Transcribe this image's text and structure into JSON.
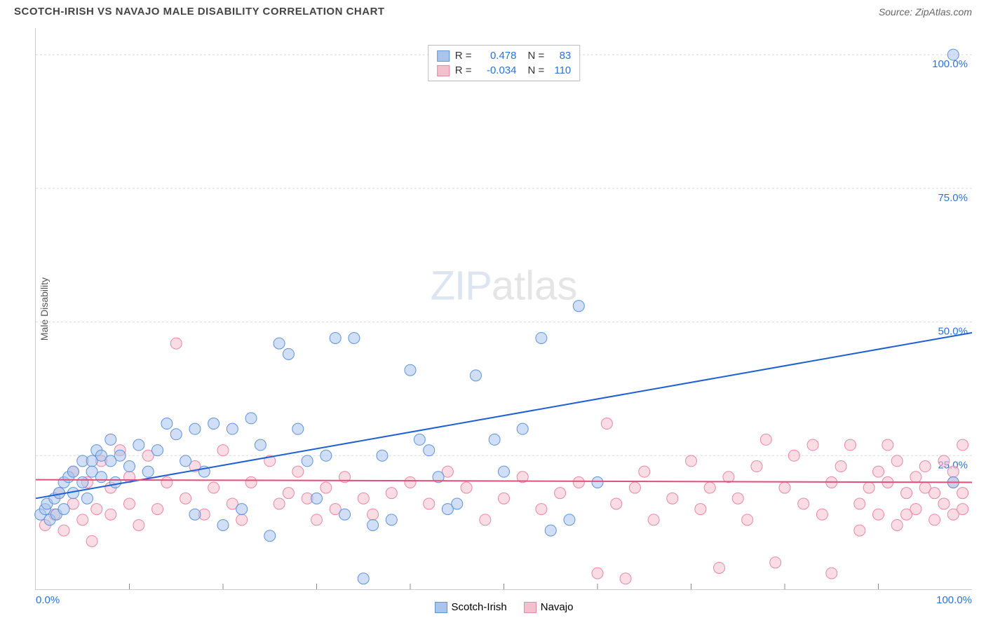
{
  "header": {
    "title": "SCOTCH-IRISH VS NAVAJO MALE DISABILITY CORRELATION CHART",
    "source": "Source: ZipAtlas.com"
  },
  "chart": {
    "type": "scatter",
    "ylabel": "Male Disability",
    "xlim": [
      0,
      100
    ],
    "ylim": [
      0,
      105
    ],
    "xtick_major": [
      0,
      100
    ],
    "xtick_minor_step": 10,
    "ytick_labels": [
      "25.0%",
      "50.0%",
      "75.0%",
      "100.0%"
    ],
    "ytick_values": [
      25,
      50,
      75,
      100
    ],
    "x_min_label": "0.0%",
    "x_max_label": "100.0%",
    "grid_color": "#d8d8d8",
    "grid_dash": "3,3",
    "tick_label_color": "#2b73d6",
    "background_color": "#ffffff",
    "marker_radius": 8,
    "marker_opacity": 0.55,
    "watermark": {
      "part1": "ZIP",
      "part2": "atlas"
    },
    "series": [
      {
        "name": "Scotch-Irish",
        "color_fill": "#a9c5ec",
        "color_stroke": "#5e93d8",
        "r_label": "R =",
        "r_value": "0.478",
        "n_label": "N =",
        "n_value": "83",
        "trend": {
          "x1": 0,
          "y1": 17,
          "x2": 100,
          "y2": 48,
          "color": "#1e60d4",
          "width": 2
        },
        "points": [
          [
            0.5,
            14
          ],
          [
            1,
            15
          ],
          [
            1.2,
            16
          ],
          [
            1.5,
            13
          ],
          [
            2,
            17
          ],
          [
            2.2,
            14
          ],
          [
            2.5,
            18
          ],
          [
            3,
            20
          ],
          [
            3,
            15
          ],
          [
            3.5,
            21
          ],
          [
            4,
            22
          ],
          [
            4,
            18
          ],
          [
            5,
            24
          ],
          [
            5,
            20
          ],
          [
            5.5,
            17
          ],
          [
            6,
            24
          ],
          [
            6,
            22
          ],
          [
            6.5,
            26
          ],
          [
            7,
            21
          ],
          [
            7,
            25
          ],
          [
            8,
            28
          ],
          [
            8,
            24
          ],
          [
            8.5,
            20
          ],
          [
            9,
            25
          ],
          [
            10,
            23
          ],
          [
            11,
            27
          ],
          [
            12,
            22
          ],
          [
            13,
            26
          ],
          [
            14,
            31
          ],
          [
            15,
            29
          ],
          [
            16,
            24
          ],
          [
            17,
            30
          ],
          [
            17,
            14
          ],
          [
            18,
            22
          ],
          [
            19,
            31
          ],
          [
            20,
            12
          ],
          [
            21,
            30
          ],
          [
            22,
            15
          ],
          [
            23,
            32
          ],
          [
            24,
            27
          ],
          [
            25,
            10
          ],
          [
            26,
            46
          ],
          [
            27,
            44
          ],
          [
            28,
            30
          ],
          [
            29,
            24
          ],
          [
            30,
            17
          ],
          [
            31,
            25
          ],
          [
            32,
            47
          ],
          [
            33,
            14
          ],
          [
            34,
            47
          ],
          [
            35,
            2
          ],
          [
            36,
            12
          ],
          [
            37,
            25
          ],
          [
            38,
            13
          ],
          [
            40,
            41
          ],
          [
            41,
            28
          ],
          [
            42,
            26
          ],
          [
            43,
            21
          ],
          [
            44,
            15
          ],
          [
            45,
            16
          ],
          [
            47,
            40
          ],
          [
            49,
            28
          ],
          [
            50,
            22
          ],
          [
            52,
            30
          ],
          [
            54,
            47
          ],
          [
            55,
            11
          ],
          [
            57,
            13
          ],
          [
            58,
            53
          ],
          [
            60,
            20
          ],
          [
            98,
            100
          ],
          [
            98,
            20
          ]
        ]
      },
      {
        "name": "Navajo",
        "color_fill": "#f4c0ce",
        "color_stroke": "#e887a5",
        "r_label": "R =",
        "r_value": "-0.034",
        "n_label": "N =",
        "n_value": "110",
        "trend": {
          "x1": 0,
          "y1": 20.5,
          "x2": 100,
          "y2": 20,
          "color": "#e24f7a",
          "width": 2
        },
        "points": [
          [
            1,
            12
          ],
          [
            2,
            14
          ],
          [
            2.5,
            18
          ],
          [
            3,
            11
          ],
          [
            4,
            16
          ],
          [
            4,
            22
          ],
          [
            5,
            13
          ],
          [
            5.5,
            20
          ],
          [
            6,
            9
          ],
          [
            6.5,
            15
          ],
          [
            7,
            24
          ],
          [
            8,
            14
          ],
          [
            8,
            19
          ],
          [
            9,
            26
          ],
          [
            10,
            16
          ],
          [
            10,
            21
          ],
          [
            11,
            12
          ],
          [
            12,
            25
          ],
          [
            13,
            15
          ],
          [
            14,
            20
          ],
          [
            15,
            46
          ],
          [
            16,
            17
          ],
          [
            17,
            23
          ],
          [
            18,
            14
          ],
          [
            19,
            19
          ],
          [
            20,
            26
          ],
          [
            21,
            16
          ],
          [
            22,
            13
          ],
          [
            23,
            20
          ],
          [
            25,
            24
          ],
          [
            26,
            16
          ],
          [
            27,
            18
          ],
          [
            28,
            22
          ],
          [
            29,
            17
          ],
          [
            30,
            13
          ],
          [
            31,
            19
          ],
          [
            32,
            15
          ],
          [
            33,
            21
          ],
          [
            35,
            17
          ],
          [
            36,
            14
          ],
          [
            38,
            18
          ],
          [
            40,
            20
          ],
          [
            42,
            16
          ],
          [
            44,
            22
          ],
          [
            46,
            19
          ],
          [
            48,
            13
          ],
          [
            50,
            17
          ],
          [
            52,
            21
          ],
          [
            54,
            15
          ],
          [
            56,
            18
          ],
          [
            58,
            20
          ],
          [
            60,
            3
          ],
          [
            61,
            31
          ],
          [
            62,
            16
          ],
          [
            63,
            2
          ],
          [
            64,
            19
          ],
          [
            65,
            22
          ],
          [
            66,
            13
          ],
          [
            68,
            17
          ],
          [
            70,
            24
          ],
          [
            71,
            15
          ],
          [
            72,
            19
          ],
          [
            73,
            4
          ],
          [
            74,
            21
          ],
          [
            75,
            17
          ],
          [
            76,
            13
          ],
          [
            77,
            23
          ],
          [
            78,
            28
          ],
          [
            79,
            5
          ],
          [
            80,
            19
          ],
          [
            81,
            25
          ],
          [
            82,
            16
          ],
          [
            83,
            27
          ],
          [
            84,
            14
          ],
          [
            85,
            20
          ],
          [
            85,
            3
          ],
          [
            86,
            23
          ],
          [
            87,
            27
          ],
          [
            88,
            16
          ],
          [
            88,
            11
          ],
          [
            89,
            19
          ],
          [
            90,
            14
          ],
          [
            90,
            22
          ],
          [
            91,
            20
          ],
          [
            91,
            27
          ],
          [
            92,
            12
          ],
          [
            92,
            24
          ],
          [
            93,
            18
          ],
          [
            93,
            14
          ],
          [
            94,
            21
          ],
          [
            94,
            15
          ],
          [
            95,
            19
          ],
          [
            95,
            23
          ],
          [
            96,
            13
          ],
          [
            96,
            18
          ],
          [
            97,
            24
          ],
          [
            97,
            16
          ],
          [
            98,
            20
          ],
          [
            98,
            14
          ],
          [
            98,
            22
          ],
          [
            99,
            18
          ],
          [
            99,
            27
          ],
          [
            99,
            15
          ]
        ]
      }
    ],
    "bottom_legend": [
      {
        "label": "Scotch-Irish",
        "fill": "#a9c5ec",
        "stroke": "#5e93d8"
      },
      {
        "label": "Navajo",
        "fill": "#f4c0ce",
        "stroke": "#e887a5"
      }
    ]
  }
}
